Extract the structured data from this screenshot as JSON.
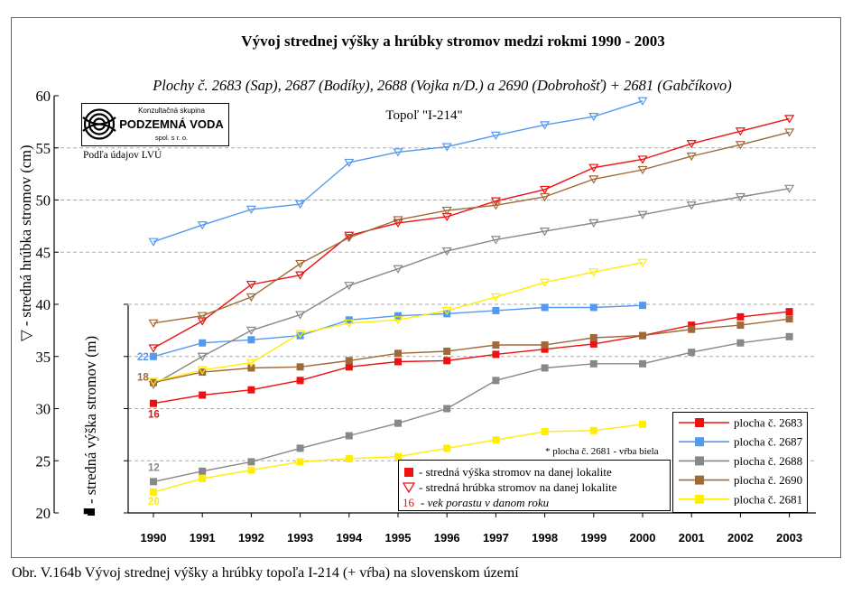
{
  "chart_data": {
    "type": "line",
    "title": "Vývoj strednej výšky a hrúbky stromov medzi rokmi 1990 - 2003",
    "subtitle": "Plochy č. 2683 (Sap), 2687 (Bodíky), 2688 (Vojka n/D.) a 2690 (Dobrohošť) + 2681 (Gabčíkovo)",
    "species_label": "Topoľ \"I-214\"",
    "source_note": "Podľa údajov LVÚ",
    "footnote": "* plocha č. 2681 - vŕba biela",
    "ylabel_diameter": "▽  - stredná hrúbka stromov (cm)",
    "ylabel_height": "■  - stredná výška stromov (m)",
    "ylim": [
      20,
      60
    ],
    "yticks_left": [
      20,
      25,
      30,
      35,
      40,
      45,
      50,
      55,
      60
    ],
    "yticks_axis": [
      20,
      25,
      30,
      35,
      40
    ],
    "x": [
      1990,
      1991,
      1992,
      1993,
      1994,
      1995,
      1996,
      1997,
      1998,
      1999,
      2000,
      2001,
      2002,
      2003
    ],
    "series": [
      {
        "name": "plocha č. 2683",
        "color": "#ee1111",
        "height": [
          30.5,
          31.3,
          31.8,
          32.7,
          34.0,
          34.5,
          34.6,
          35.2,
          35.7,
          36.2,
          37.0,
          38.0,
          38.8,
          39.3
        ],
        "diameter": [
          35.8,
          38.4,
          41.9,
          42.8,
          46.6,
          47.8,
          48.4,
          49.9,
          51.0,
          53.1,
          53.9,
          55.4,
          56.6,
          57.8
        ],
        "age_label": "16",
        "age_label_color": "#ee1111"
      },
      {
        "name": "plocha č. 2687",
        "color": "#5599ee",
        "height": [
          35.0,
          36.3,
          36.6,
          37.0,
          38.5,
          38.9,
          39.1,
          39.4,
          39.7,
          39.7,
          39.9,
          null,
          null,
          null
        ],
        "diameter": [
          46.0,
          47.6,
          49.1,
          49.6,
          53.6,
          54.6,
          55.1,
          56.2,
          57.2,
          58.0,
          59.5,
          null,
          null,
          null
        ],
        "age_label": "22",
        "age_label_color": "#5599ee"
      },
      {
        "name": "plocha č. 2688",
        "color": "#888888",
        "height": [
          23.0,
          24.0,
          24.9,
          26.2,
          27.4,
          28.6,
          30.0,
          32.7,
          33.9,
          34.3,
          34.3,
          35.4,
          36.3,
          36.9
        ],
        "diameter": [
          32.3,
          35.0,
          37.5,
          39.0,
          41.8,
          43.4,
          45.1,
          46.2,
          47.0,
          47.8,
          48.6,
          49.5,
          50.3,
          51.1
        ],
        "age_label": "12",
        "age_label_color": "#888888"
      },
      {
        "name": "plocha č. 2690",
        "color": "#a06a38",
        "height": [
          32.5,
          33.5,
          33.9,
          34.0,
          34.6,
          35.3,
          35.5,
          36.1,
          36.1,
          36.8,
          37.0,
          37.6,
          38.0,
          38.6
        ],
        "diameter": [
          38.2,
          38.9,
          40.7,
          43.9,
          46.4,
          48.1,
          49.0,
          49.5,
          50.3,
          52.0,
          52.9,
          54.2,
          55.3,
          56.5
        ],
        "age_label": "18",
        "age_label_color": "#a06a38"
      },
      {
        "name": "plocha č. 2681",
        "color": "#ffee00",
        "height": [
          22.0,
          23.3,
          24.1,
          24.9,
          25.2,
          25.4,
          26.2,
          27.0,
          27.8,
          27.9,
          28.5,
          null,
          null,
          null
        ],
        "diameter": [
          32.6,
          33.7,
          34.4,
          37.2,
          38.2,
          38.5,
          39.4,
          40.7,
          42.1,
          43.1,
          44.0,
          null,
          null,
          null
        ],
        "age_label": "20",
        "age_label_color": "#ffee00"
      }
    ],
    "legend_markers": {
      "height": "- stredná výška stromov na danej lokalite",
      "diameter": "- stredná hrúbka stromov na danej lokalite",
      "age_number": "16",
      "age": "- vek porastu v danom roku"
    },
    "legend_position": "bottom-right"
  },
  "logo": {
    "line1": "Konzultačná skupina",
    "line2": "PODZEMNÁ VODA",
    "line3": "spol. s r. o."
  },
  "caption": "Obr. V.164b Vývoj strednej výšky a hrúbky topoľa I-214 (+ vŕba) na slovenskom území"
}
